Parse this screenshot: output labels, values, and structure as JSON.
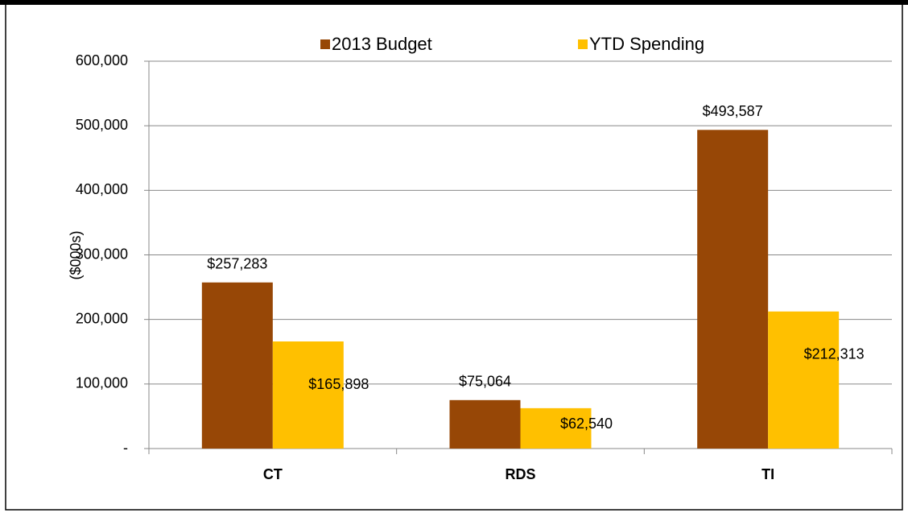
{
  "chart_data": {
    "type": "bar",
    "y_label": "($000s)",
    "categories": [
      "CT",
      "RDS",
      "TI"
    ],
    "series": [
      {
        "name": "2013 Budget",
        "color": "#974706",
        "values": [
          257283,
          75064,
          493587
        ],
        "value_labels": [
          "$257,283",
          "$75,064",
          "$493,587"
        ]
      },
      {
        "name": "YTD Spending",
        "color": "#FFC000",
        "values": [
          165898,
          62540,
          212313
        ],
        "value_labels": [
          "$165,898",
          "$62,540",
          "$212,313"
        ]
      }
    ],
    "ylim": [
      0,
      600000
    ],
    "yticks": [
      {
        "value": 0,
        "label": "-"
      },
      {
        "value": 100000,
        "label": "100,000"
      },
      {
        "value": 200000,
        "label": "200,000"
      },
      {
        "value": 300000,
        "label": "300,000"
      },
      {
        "value": 400000,
        "label": "400,000"
      },
      {
        "value": 500000,
        "label": "500,000"
      },
      {
        "value": 600000,
        "label": "600,000"
      }
    ],
    "grid": true,
    "legend": "top"
  }
}
